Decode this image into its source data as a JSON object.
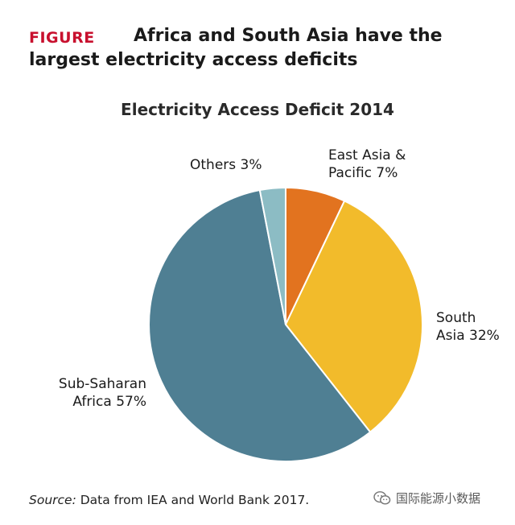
{
  "header": {
    "tag": "FIGURE",
    "title": "Africa and South Asia have the largest electricity access deficits"
  },
  "chart_data": {
    "type": "pie",
    "title": "Electricity Access Deficit 2014",
    "start_angle_deg": 0,
    "direction": "clockwise",
    "slices": [
      {
        "name": "East Asia & Pacific",
        "label_lines": [
          "East Asia &",
          "Pacific 7%"
        ],
        "value": 7,
        "color": "#e2731f"
      },
      {
        "name": "South Asia",
        "label_lines": [
          "South",
          "Asia 32%"
        ],
        "value": 32,
        "color": "#f2bb2b"
      },
      {
        "name": "Sub-Saharan Africa",
        "label_lines": [
          "Sub-Saharan",
          "Africa 57%"
        ],
        "value": 57,
        "color": "#4f7f93"
      },
      {
        "name": "Others",
        "label_lines": [
          "Others 3%"
        ],
        "value": 3,
        "color": "#8cbcc4"
      }
    ]
  },
  "source": {
    "prefix": "Source:",
    "text": " Data from IEA and World Bank 2017."
  },
  "watermark": {
    "text": "国际能源小数据",
    "icon": "wechat-icon"
  }
}
